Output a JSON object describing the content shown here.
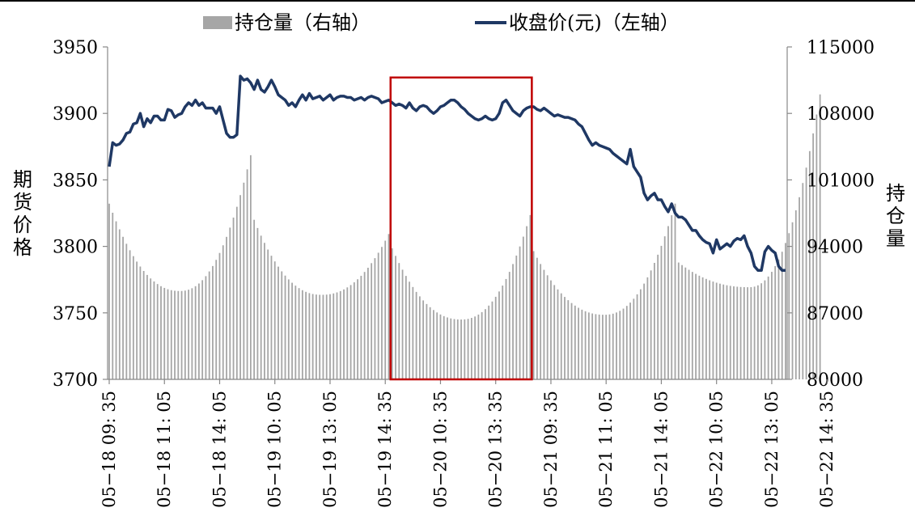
{
  "chart_data": {
    "type": "bar+line",
    "legend": {
      "placement": "top",
      "entries": [
        {
          "name": "持仓量（右轴）",
          "marker": "bar",
          "color": "#a6a6a6"
        },
        {
          "name": "收盘价(元)（左轴）",
          "marker": "line",
          "color": "#1f3864"
        }
      ]
    },
    "left_axis": {
      "title": "期货价格",
      "ylim": [
        3700,
        3950
      ],
      "ticks": [
        "3950",
        "3900",
        "3850",
        "3800",
        "3750",
        "3700"
      ]
    },
    "right_axis": {
      "title": "持仓量",
      "ylim": [
        80000,
        115000
      ],
      "ticks": [
        "115000",
        "108000",
        "101000",
        "94000",
        "87000",
        "80000"
      ]
    },
    "x_tick_labels": [
      "05−18  09: 35",
      "05−18  11: 05",
      "05−18  14: 05",
      "05−19  10: 05",
      "05−19  13: 05",
      "05−19  14: 35",
      "05−20  10: 35",
      "05−20  13: 35",
      "05−21  09: 35",
      "05−21  11: 05",
      "05−21  14: 05",
      "05−22  10: 05",
      "05−22  13: 05",
      "05−22  14: 35"
    ],
    "x_tick_positions": [
      0,
      16,
      32,
      48,
      64,
      80,
      96,
      112,
      128,
      144,
      160,
      176,
      192,
      208
    ],
    "price_series": {
      "name": "收盘价(元)",
      "axis": "left",
      "color": "#1f3864",
      "values": [
        3860,
        3878,
        3876,
        3877,
        3880,
        3885,
        3886,
        3892,
        3893,
        3900,
        3890,
        3896,
        3893,
        3898,
        3898,
        3895,
        3895,
        3903,
        3902,
        3897,
        3899,
        3900,
        3905,
        3908,
        3906,
        3910,
        3906,
        3908,
        3904,
        3904,
        3904,
        3900,
        3905,
        3895,
        3885,
        3882,
        3882,
        3884,
        3928,
        3925,
        3926,
        3923,
        3918,
        3925,
        3918,
        3916,
        3920,
        3925,
        3920,
        3914,
        3912,
        3910,
        3906,
        3908,
        3905,
        3910,
        3914,
        3910,
        3915,
        3911,
        3912,
        3913,
        3910,
        3912,
        3914,
        3910,
        3912,
        3913,
        3913,
        3912,
        3912,
        3910,
        3911,
        3912,
        3910,
        3912,
        3913,
        3912,
        3911,
        3908,
        3909,
        3910,
        3908,
        3906,
        3907,
        3906,
        3904,
        3908,
        3904,
        3902,
        3905,
        3906,
        3905,
        3902,
        3900,
        3902,
        3905,
        3906,
        3908,
        3910,
        3910,
        3908,
        3905,
        3903,
        3900,
        3898,
        3896,
        3895,
        3896,
        3898,
        3896,
        3895,
        3896,
        3900,
        3908,
        3910,
        3906,
        3902,
        3900,
        3898,
        3902,
        3904,
        3905,
        3905,
        3903,
        3902,
        3904,
        3902,
        3900,
        3898,
        3899,
        3898,
        3897,
        3897,
        3896,
        3895,
        3892,
        3890,
        3885,
        3880,
        3876,
        3878,
        3876,
        3875,
        3874,
        3873,
        3870,
        3868,
        3866,
        3864,
        3862,
        3873,
        3860,
        3856,
        3852,
        3840,
        3835,
        3838,
        3840,
        3835,
        3835,
        3830,
        3826,
        3832,
        3825,
        3822,
        3822,
        3820,
        3816,
        3812,
        3812,
        3808,
        3805,
        3803,
        3802,
        3795,
        3805,
        3798,
        3800,
        3802,
        3800,
        3804,
        3806,
        3805,
        3808,
        3800,
        3795,
        3785,
        3782,
        3782,
        3796,
        3800,
        3797,
        3795,
        3785,
        3782,
        3782
      ],
      "note_end": 3782
    },
    "oi_series": {
      "name": "持仓量",
      "axis": "right",
      "color": "#a6a6a6",
      "segments": [
        {
          "start": 0,
          "end": 41,
          "peak_start": 98500,
          "trough": 89300,
          "peak_end": 103600
        },
        {
          "start": 42,
          "end": 81,
          "peak_start": 96800,
          "trough": 88900,
          "peak_end": 95300
        },
        {
          "start": 82,
          "end": 122,
          "peak_start": 93800,
          "trough": 86300,
          "peak_end": 97300
        },
        {
          "start": 123,
          "end": 164,
          "peak_start": 93500,
          "trough": 86800,
          "peak_end": 98500
        },
        {
          "start": 165,
          "end": 206,
          "peak_start": 92300,
          "trough": 89700,
          "peak_end": 110000
        }
      ]
    },
    "highlight_box": {
      "color": "#c00000",
      "from_index": 82,
      "to_index": 122,
      "y_top": 3927,
      "y_bottom": 3700
    },
    "grid": false
  }
}
